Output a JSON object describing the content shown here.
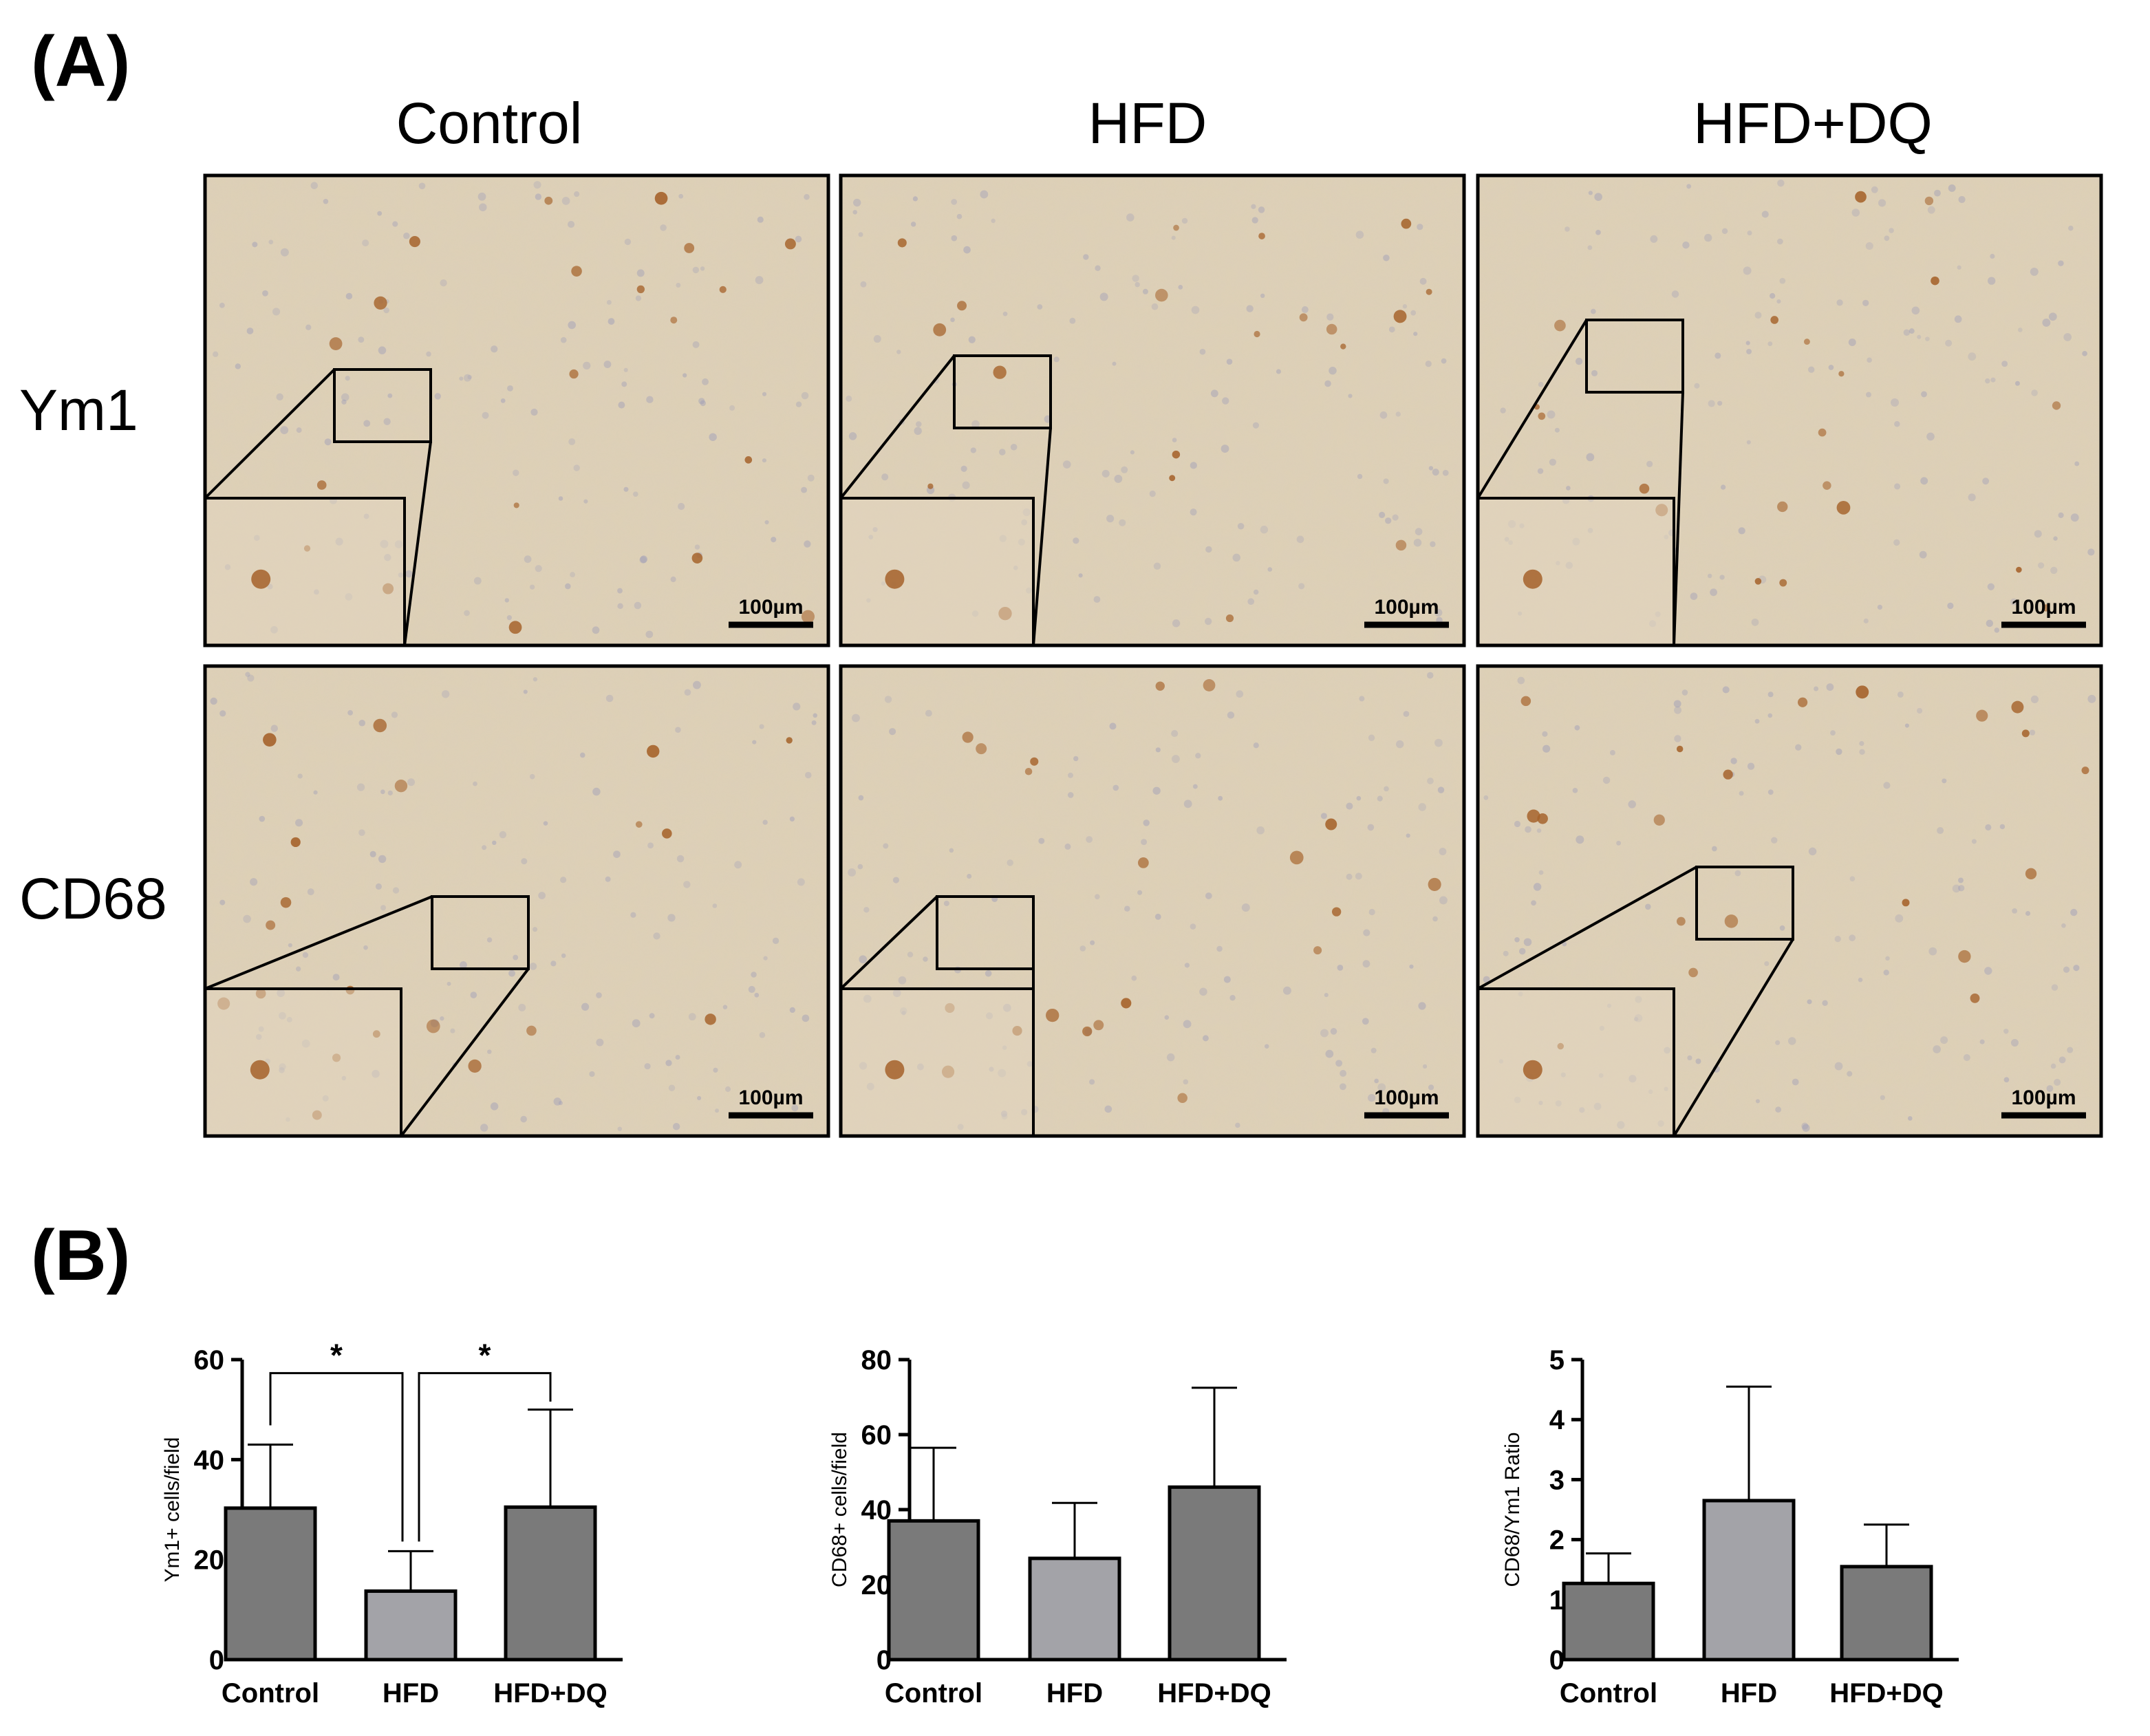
{
  "panel_a": {
    "label": "(A)",
    "columns": [
      "Control",
      "HFD",
      "HFD+DQ"
    ],
    "rows": [
      "Ym1",
      "CD68"
    ],
    "scale_bar": "100µm"
  },
  "panel_b": {
    "label": "(B)"
  },
  "colors": {
    "dark_bar": "#7a7a7a",
    "light_bar": "#a3a3a8",
    "tissue_base": "#ddd0b6",
    "stain_brown": "#a5622a",
    "nucleus_blue": "#9a9ab8"
  },
  "chart_data": [
    {
      "type": "bar",
      "categories": [
        "Control",
        "HFD",
        "HFD+DQ"
      ],
      "values": [
        30.3,
        13.7,
        30.5
      ],
      "errors": [
        12.7,
        8.0,
        19.5
      ],
      "ylabel": "Ym1+ cells/field",
      "ylim": [
        0,
        60
      ],
      "yticks": [
        0,
        20,
        40,
        60
      ],
      "significance": [
        {
          "from": 0,
          "to": 1,
          "label": "*"
        },
        {
          "from": 1,
          "to": 2,
          "label": "*"
        }
      ]
    },
    {
      "type": "bar",
      "categories": [
        "Control",
        "HFD",
        "HFD+DQ"
      ],
      "values": [
        37.0,
        27.0,
        46.0
      ],
      "errors": [
        19.5,
        14.8,
        26.5
      ],
      "ylabel": "CD68+ cells/field",
      "ylim": [
        0,
        80
      ],
      "yticks": [
        0,
        20,
        40,
        60,
        80
      ]
    },
    {
      "type": "bar",
      "categories": [
        "Control",
        "HFD",
        "HFD+DQ"
      ],
      "values": [
        1.27,
        2.65,
        1.55
      ],
      "errors": [
        0.5,
        1.9,
        0.7
      ],
      "ylabel": "CD68/Ym1 Ratio",
      "ylim": [
        0,
        5
      ],
      "yticks": [
        0,
        1,
        2,
        3,
        4,
        5
      ]
    }
  ]
}
